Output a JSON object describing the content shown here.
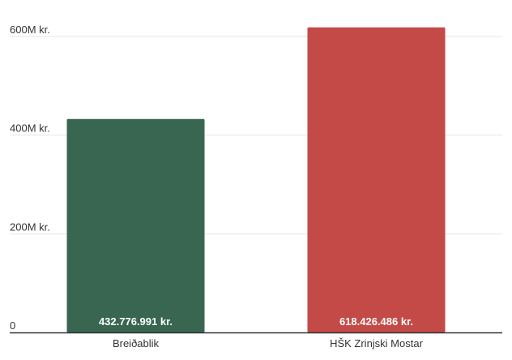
{
  "chart_data": {
    "type": "bar",
    "categories": [
      "Breiðablik",
      "HŠK Zrinjski Mostar"
    ],
    "values": [
      432776991,
      618426486
    ],
    "value_labels": [
      "432.776.991 kr.",
      "618.426.486 kr."
    ],
    "colors": [
      "#386651",
      "#c44a48"
    ],
    "ylim": [
      0,
      600000000
    ],
    "yticks": [
      0,
      200000000,
      400000000,
      600000000
    ],
    "ytick_labels": [
      "0",
      "200M kr.",
      "400M kr.",
      "600M kr."
    ],
    "grid": true,
    "legend": "none"
  }
}
